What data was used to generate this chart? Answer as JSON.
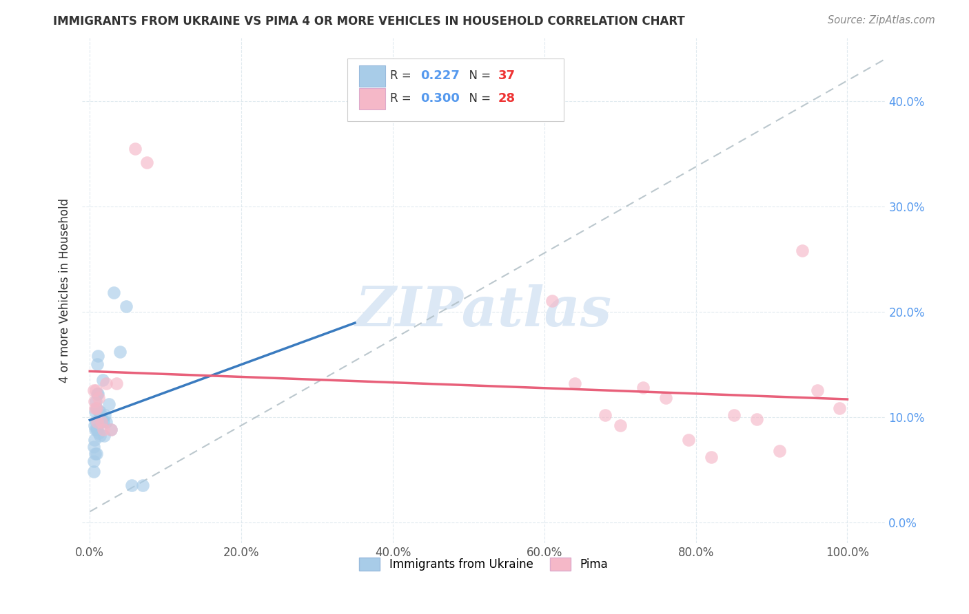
{
  "title": "IMMIGRANTS FROM UKRAINE VS PIMA 4 OR MORE VEHICLES IN HOUSEHOLD CORRELATION CHART",
  "source": "Source: ZipAtlas.com",
  "ylabel": "4 or more Vehicles in Household",
  "legend_label1": "Immigrants from Ukraine",
  "legend_label2": "Pima",
  "R1": "0.227",
  "N1": "37",
  "R2": "0.300",
  "N2": "28",
  "blue_scatter_color": "#a8cce8",
  "pink_scatter_color": "#f5b8c8",
  "blue_line_color": "#3a7bbf",
  "pink_line_color": "#e8607a",
  "dashed_line_color": "#b0bec5",
  "watermark_text": "ZIPatlas",
  "watermark_color": "#dce8f5",
  "background_color": "#ffffff",
  "grid_color": "#dde8ee",
  "title_color": "#333333",
  "source_color": "#888888",
  "ylabel_color": "#333333",
  "right_tick_color": "#5599ee",
  "N_color": "#ee3333",
  "R_value_color": "#5599ee",
  "xlim": [
    -0.01,
    1.05
  ],
  "ylim": [
    -0.02,
    0.46
  ],
  "xtick_positions": [
    0.0,
    0.2,
    0.4,
    0.6,
    0.8,
    1.0
  ],
  "xtick_labels": [
    "0.0%",
    "20.0%",
    "40.0%",
    "60.0%",
    "80.0%",
    "100.0%"
  ],
  "ytick_positions": [
    0.0,
    0.1,
    0.2,
    0.3,
    0.4
  ],
  "ytick_labels": [
    "0.0%",
    "10.0%",
    "20.0%",
    "30.0%",
    "40.0%"
  ],
  "ukraine_x": [
    0.005,
    0.005,
    0.005,
    0.006,
    0.006,
    0.007,
    0.007,
    0.007,
    0.008,
    0.008,
    0.009,
    0.009,
    0.009,
    0.01,
    0.01,
    0.01,
    0.011,
    0.011,
    0.012,
    0.012,
    0.013,
    0.013,
    0.014,
    0.015,
    0.016,
    0.017,
    0.018,
    0.019,
    0.02,
    0.022,
    0.025,
    0.028,
    0.032,
    0.04,
    0.048,
    0.055,
    0.07
  ],
  "ukraine_y": [
    0.072,
    0.058,
    0.048,
    0.092,
    0.078,
    0.105,
    0.088,
    0.065,
    0.115,
    0.096,
    0.108,
    0.088,
    0.065,
    0.15,
    0.122,
    0.088,
    0.158,
    0.122,
    0.106,
    0.085,
    0.105,
    0.082,
    0.102,
    0.095,
    0.098,
    0.135,
    0.096,
    0.082,
    0.102,
    0.095,
    0.112,
    0.088,
    0.218,
    0.162,
    0.205,
    0.035,
    0.035
  ],
  "pima_x": [
    0.005,
    0.006,
    0.007,
    0.008,
    0.009,
    0.01,
    0.012,
    0.015,
    0.018,
    0.022,
    0.028,
    0.035,
    0.06,
    0.075,
    0.61,
    0.64,
    0.68,
    0.7,
    0.73,
    0.76,
    0.79,
    0.82,
    0.85,
    0.88,
    0.91,
    0.94,
    0.96,
    0.99
  ],
  "pima_y": [
    0.125,
    0.115,
    0.108,
    0.125,
    0.108,
    0.095,
    0.118,
    0.095,
    0.088,
    0.132,
    0.088,
    0.132,
    0.355,
    0.342,
    0.21,
    0.132,
    0.102,
    0.092,
    0.128,
    0.118,
    0.078,
    0.062,
    0.102,
    0.098,
    0.068,
    0.258,
    0.125,
    0.108
  ],
  "scatter_size": 180,
  "scatter_alpha": 0.65,
  "line_width": 2.5
}
